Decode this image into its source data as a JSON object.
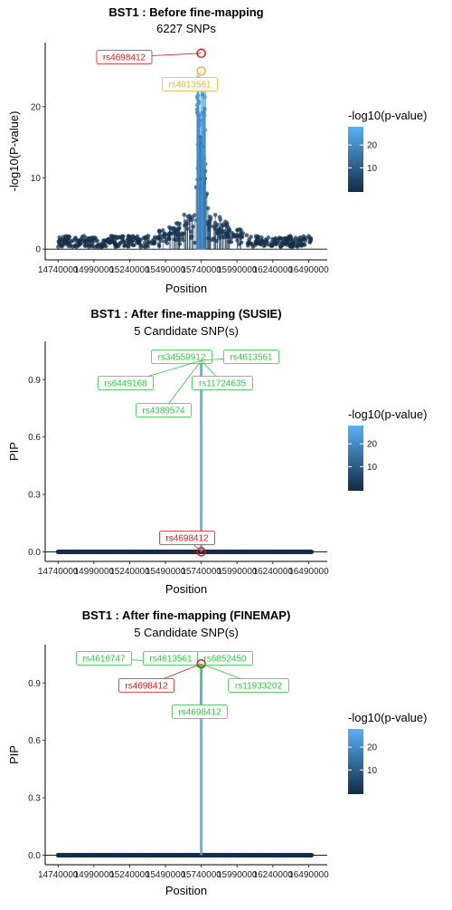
{
  "palette": {
    "low": "#132B43",
    "high": "#56B1F7",
    "lead_red": "#e31a1c",
    "orange": "#f5b041",
    "green": "#2ecc40"
  },
  "legend": {
    "title": "-log10(p-value)",
    "ticks": [
      "10",
      "20"
    ]
  },
  "chart_data": [
    {
      "type": "scatter",
      "title": "BST1 : Before fine-mapping",
      "subtitle": "6227 SNPs",
      "xlabel": "Position",
      "ylabel": "-log10(P-value)",
      "x_tick_labels": [
        "14740000",
        "14990000",
        "15240000",
        "15490000",
        "15740000",
        "15990000",
        "16240000",
        "16490000"
      ],
      "y_ticks": [
        0,
        10,
        20
      ],
      "y_tick_labels": [
        "0",
        "10",
        "20"
      ],
      "ylim": [
        -1.5,
        29
      ],
      "labels": [
        {
          "name": "rs4698412",
          "x": 15740000,
          "y": 27.5,
          "color": "lead_red"
        },
        {
          "name": "rs4613561",
          "x": 15740000,
          "y": 25.0,
          "color": "orange"
        }
      ]
    },
    {
      "type": "scatter",
      "title": "BST1 : After fine-mapping (SUSIE)",
      "subtitle": "5 Candidate SNP(s)",
      "xlabel": "Position",
      "ylabel": "PIP",
      "x_tick_labels": [
        "14740000",
        "14990000",
        "15240000",
        "15490000",
        "15740000",
        "15990000",
        "16240000",
        "16490000"
      ],
      "y_ticks": [
        0.0,
        0.3,
        0.6,
        0.9
      ],
      "y_tick_labels": [
        "0.0",
        "0.3",
        "0.6",
        "0.9"
      ],
      "ylim": [
        -0.05,
        1.1
      ],
      "labels": [
        {
          "name": "rs34559912",
          "x": 15740000,
          "y": 1.0,
          "color": "green"
        },
        {
          "name": "rs4613561",
          "x": 15740000,
          "y": 1.0,
          "color": "green"
        },
        {
          "name": "rs6449168",
          "x": 15740000,
          "y": 1.0,
          "color": "green"
        },
        {
          "name": "rs11724635",
          "x": 15740000,
          "y": 1.0,
          "color": "green"
        },
        {
          "name": "rs4389574",
          "x": 15740000,
          "y": 1.0,
          "color": "green"
        },
        {
          "name": "rs4698412",
          "x": 15740000,
          "y": 0.0,
          "color": "lead_red"
        }
      ]
    },
    {
      "type": "scatter",
      "title": "BST1 : After fine-mapping (FINEMAP)",
      "subtitle": "5 Candidate SNP(s)",
      "xlabel": "Position",
      "ylabel": "PIP",
      "x_tick_labels": [
        "14740000",
        "14990000",
        "15240000",
        "15490000",
        "15740000",
        "15990000",
        "16240000",
        "16490000"
      ],
      "y_ticks": [
        0.0,
        0.3,
        0.6,
        0.9
      ],
      "y_tick_labels": [
        "0.0",
        "0.3",
        "0.6",
        "0.9"
      ],
      "ylim": [
        -0.05,
        1.1
      ],
      "labels": [
        {
          "name": "rs4616747",
          "x": 15740000,
          "y": 1.0,
          "color": "green"
        },
        {
          "name": "rs4613561",
          "x": 15740000,
          "y": 1.0,
          "color": "green"
        },
        {
          "name": "rs6852450",
          "x": 15740000,
          "y": 1.0,
          "color": "green"
        },
        {
          "name": "rs4698412",
          "x": 15740000,
          "y": 1.0,
          "color": "lead_red"
        },
        {
          "name": "rs11933202",
          "x": 15740000,
          "y": 1.0,
          "color": "green"
        },
        {
          "name": "rs4698412",
          "x": 15740000,
          "y": 1.0,
          "color": "green"
        }
      ]
    }
  ]
}
